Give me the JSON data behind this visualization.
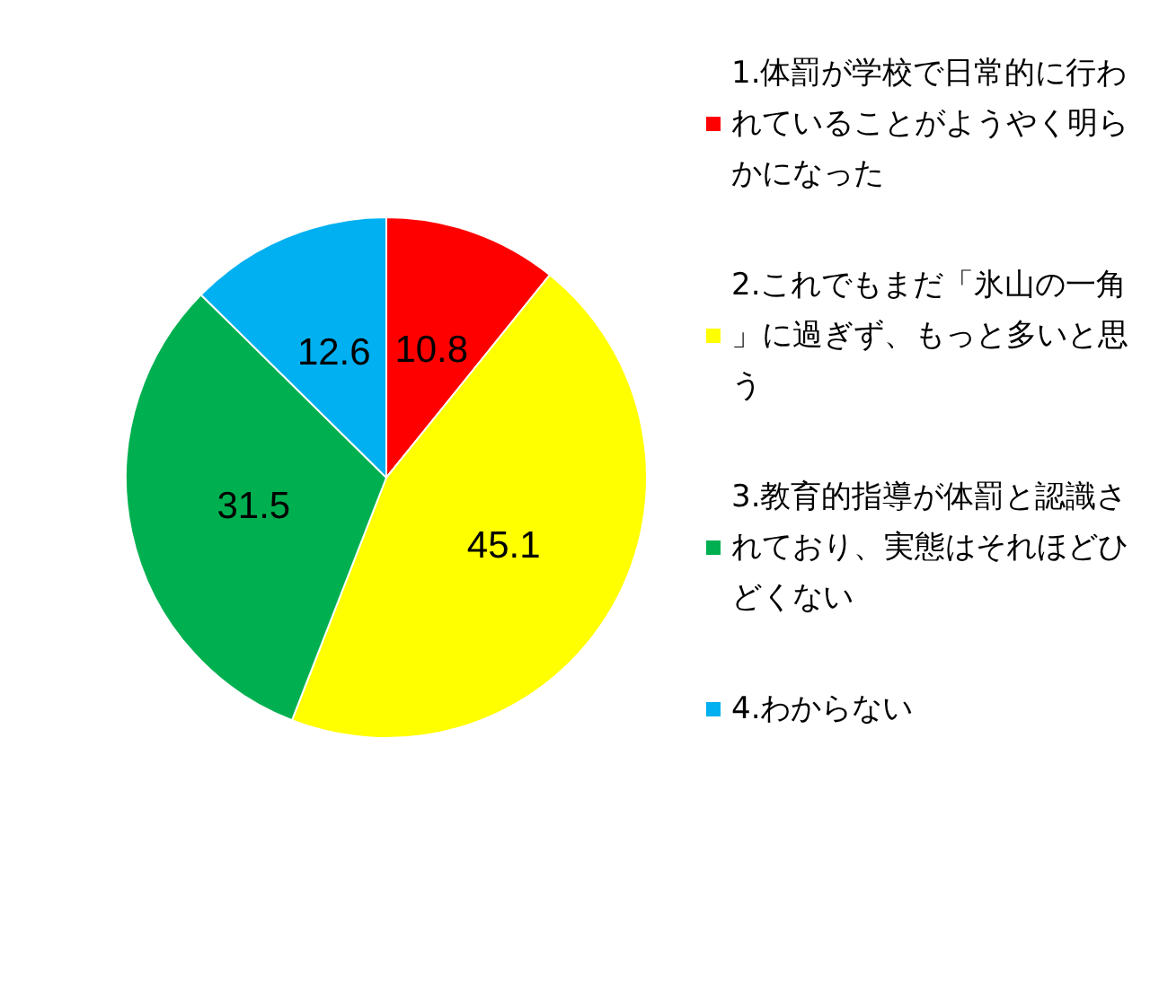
{
  "chart_data": {
    "type": "pie",
    "categories": [
      "1.体罰が学校で日常的に行われていることがようやく明らかになった",
      "2.これでもまだ「氷山の一角」に過ぎず、もっと多いと思う",
      "3.教育的指導が体罰と認識されており、実態はそれほどひどくない",
      "4.わからない"
    ],
    "values": [
      10.8,
      45.1,
      31.5,
      12.6
    ],
    "colors": [
      "#ff0000",
      "#ffff00",
      "#00b050",
      "#00b0f0"
    ],
    "data_labels": true,
    "legend": "right"
  }
}
